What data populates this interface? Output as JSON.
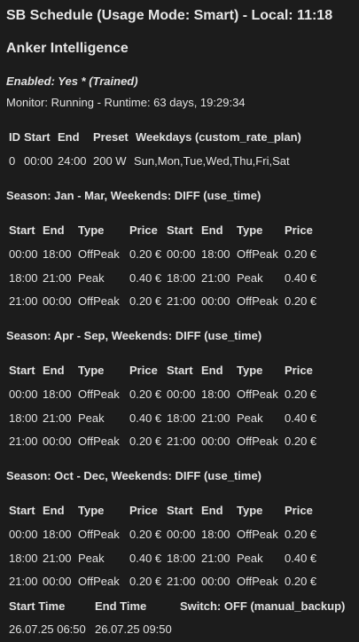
{
  "header": {
    "title": "SB Schedule (Usage Mode: Smart) - Local: 11:18",
    "subtitle": "Anker Intelligence",
    "enabled": "Enabled: Yes * (Trained)",
    "monitor": "Monitor: Running - Runtime: 63 days, 19:29:34"
  },
  "plan": {
    "headers": [
      "ID",
      "Start",
      "End",
      "Preset",
      "Weekdays (custom_rate_plan)"
    ],
    "row": [
      "0",
      "00:00",
      "24:00",
      "200 W",
      "Sun,Mon,Tue,Wed,Thu,Fri,Sat"
    ]
  },
  "season_headers": [
    "Start",
    "End",
    "Type",
    "Price",
    "Start",
    "End",
    "Type",
    "Price"
  ],
  "seasons": [
    {
      "title": "Season: Jan - Mar, Weekends: DIFF (use_time)",
      "rows": [
        [
          "00:00",
          "18:00",
          "OffPeak",
          "0.20 €",
          "00:00",
          "18:00",
          "OffPeak",
          "0.20 €"
        ],
        [
          "18:00",
          "21:00",
          "Peak",
          "0.40 €",
          "18:00",
          "21:00",
          "Peak",
          "0.40 €"
        ],
        [
          "21:00",
          "00:00",
          "OffPeak",
          "0.20 €",
          "21:00",
          "00:00",
          "OffPeak",
          "0.20 €"
        ]
      ]
    },
    {
      "title": "Season: Apr - Sep, Weekends: DIFF (use_time)",
      "rows": [
        [
          "00:00",
          "18:00",
          "OffPeak",
          "0.20 €",
          "00:00",
          "18:00",
          "OffPeak",
          "0.20 €"
        ],
        [
          "18:00",
          "21:00",
          "Peak",
          "0.40 €",
          "18:00",
          "21:00",
          "Peak",
          "0.40 €"
        ],
        [
          "21:00",
          "00:00",
          "OffPeak",
          "0.20 €",
          "21:00",
          "00:00",
          "OffPeak",
          "0.20 €"
        ]
      ]
    },
    {
      "title": "Season: Oct - Dec, Weekends: DIFF (use_time)",
      "rows": [
        [
          "00:00",
          "18:00",
          "OffPeak",
          "0.20 €",
          "00:00",
          "18:00",
          "OffPeak",
          "0.20 €"
        ],
        [
          "18:00",
          "21:00",
          "Peak",
          "0.40 €",
          "18:00",
          "21:00",
          "Peak",
          "0.40 €"
        ],
        [
          "21:00",
          "00:00",
          "OffPeak",
          "0.20 €",
          "21:00",
          "00:00",
          "OffPeak",
          "0.20 €"
        ]
      ]
    }
  ],
  "backup": {
    "headers": [
      "Start Time",
      "End Time",
      "Switch: OFF (manual_backup)"
    ],
    "row": [
      "26.07.25 06:50",
      "26.07.25 09:50"
    ]
  }
}
